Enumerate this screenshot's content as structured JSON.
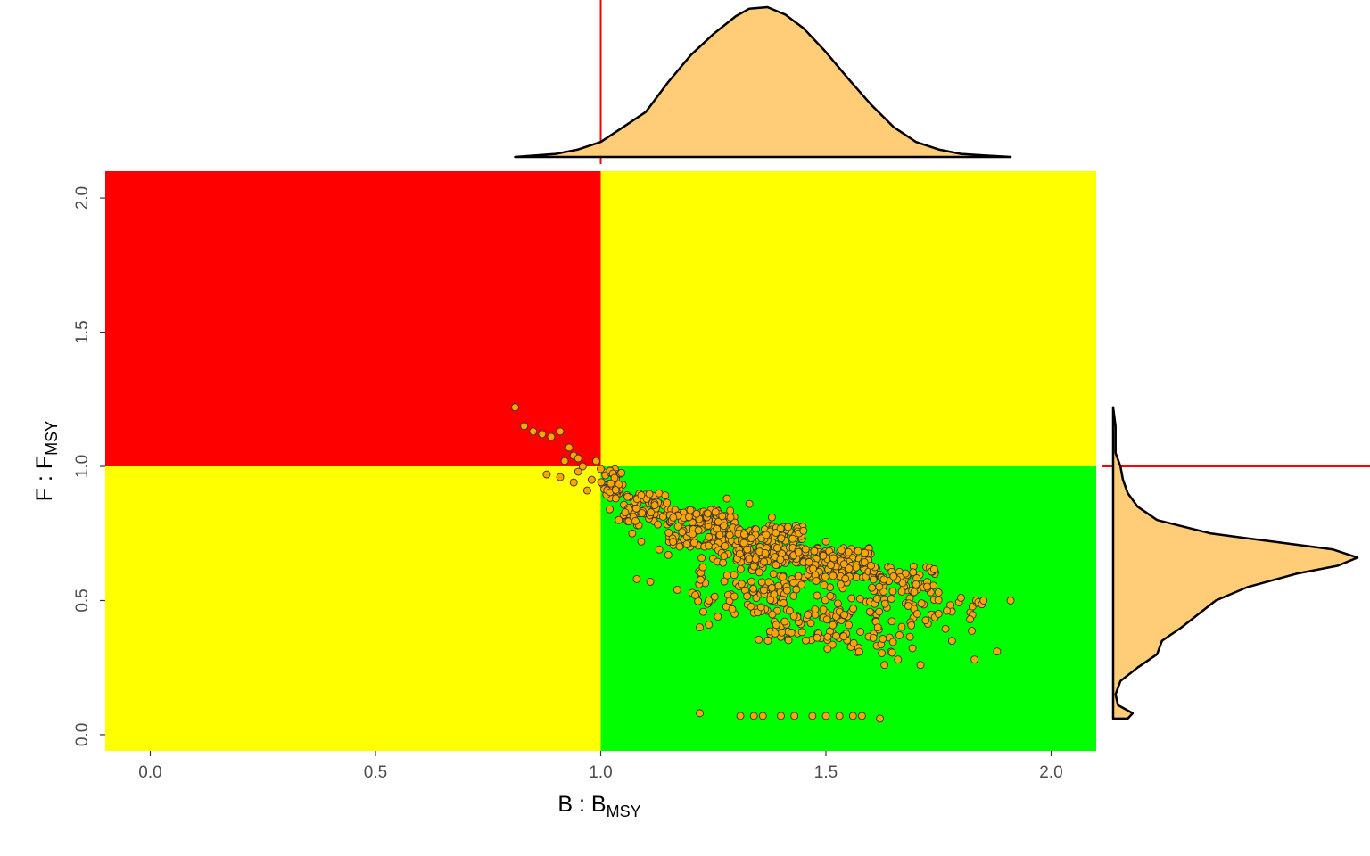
{
  "chart_data": {
    "type": "scatter",
    "title": "",
    "x_axis": {
      "label": "B : B",
      "label_subscript": "MSY",
      "range": [
        -0.1,
        2.1
      ],
      "ticks": [
        0.0,
        0.5,
        1.0,
        1.5,
        2.0
      ],
      "tick_labels": [
        "0.0",
        "0.5",
        "1.0",
        "1.5",
        "2.0"
      ]
    },
    "y_axis": {
      "label": "F : F",
      "label_subscript": "MSY",
      "range": [
        -0.06,
        2.1
      ],
      "ticks": [
        0.0,
        0.5,
        1.0,
        1.5,
        2.0
      ],
      "tick_labels": [
        "0.0",
        "0.5",
        "1.0",
        "1.5",
        "2.0"
      ]
    },
    "reference_point": {
      "x": 1.0,
      "y": 1.0
    },
    "quadrants": [
      {
        "name": "overfished-and-overfishing",
        "x": [
          -0.1,
          1.0
        ],
        "y": [
          1.0,
          2.1
        ],
        "color": "#FF0000"
      },
      {
        "name": "overfishing-only",
        "x": [
          1.0,
          2.1
        ],
        "y": [
          1.0,
          2.1
        ],
        "color": "#FFFF00"
      },
      {
        "name": "overfished-only",
        "x": [
          -0.1,
          1.0
        ],
        "y": [
          -0.06,
          1.0
        ],
        "color": "#FFFF00"
      },
      {
        "name": "sustainable",
        "x": [
          1.0,
          2.1
        ],
        "y": [
          -0.06,
          1.0
        ],
        "color": "#00FF00"
      }
    ],
    "grid": false,
    "legend": "none",
    "colors": {
      "point_fill": "#FFA500",
      "point_stroke": "#333333",
      "density_fill": "#FFCC77",
      "reference_line": "#FF0000"
    },
    "series": [
      {
        "points": [
          [
            0.81,
            1.22
          ],
          [
            0.83,
            1.15
          ],
          [
            0.85,
            1.13
          ],
          [
            0.87,
            1.12
          ],
          [
            0.89,
            1.11
          ],
          [
            0.91,
            1.13
          ],
          [
            0.93,
            1.07
          ],
          [
            0.94,
            1.04
          ],
          [
            0.92,
            1.02
          ],
          [
            0.95,
            1.03
          ],
          [
            0.96,
            1.0
          ],
          [
            0.95,
            0.98
          ],
          [
            0.88,
            0.97
          ],
          [
            0.91,
            0.96
          ],
          [
            0.94,
            0.94
          ],
          [
            0.98,
            0.95
          ],
          [
            0.99,
            1.02
          ],
          [
            1.0,
            0.99
          ],
          [
            0.97,
            0.91
          ],
          [
            1.02,
            0.84
          ],
          [
            1.04,
            0.8
          ],
          [
            1.07,
            0.75
          ],
          [
            1.09,
            0.72
          ],
          [
            1.13,
            0.69
          ],
          [
            1.15,
            0.67
          ],
          [
            1.08,
            0.58
          ],
          [
            1.11,
            0.57
          ],
          [
            1.17,
            0.54
          ],
          [
            1.21,
            0.52
          ],
          [
            1.24,
            0.5
          ],
          [
            1.26,
            0.44
          ],
          [
            1.22,
            0.4
          ],
          [
            1.24,
            0.41
          ],
          [
            1.28,
            0.88
          ],
          [
            1.33,
            0.86
          ],
          [
            1.38,
            0.81
          ],
          [
            1.45,
            0.76
          ],
          [
            1.5,
            0.72
          ],
          [
            1.55,
            0.68
          ],
          [
            1.6,
            0.63
          ],
          [
            1.65,
            0.59
          ],
          [
            1.7,
            0.56
          ],
          [
            1.75,
            0.53
          ],
          [
            1.8,
            0.51
          ],
          [
            1.85,
            0.5
          ],
          [
            1.91,
            0.5
          ],
          [
            1.82,
            0.43
          ],
          [
            1.88,
            0.31
          ],
          [
            1.83,
            0.28
          ],
          [
            1.78,
            0.35
          ],
          [
            1.71,
            0.26
          ],
          [
            1.66,
            0.28
          ],
          [
            1.63,
            0.26
          ],
          [
            1.22,
            0.08
          ],
          [
            1.31,
            0.07
          ],
          [
            1.34,
            0.07
          ],
          [
            1.36,
            0.07
          ],
          [
            1.4,
            0.07
          ],
          [
            1.43,
            0.07
          ],
          [
            1.47,
            0.07
          ],
          [
            1.5,
            0.07
          ],
          [
            1.53,
            0.07
          ],
          [
            1.56,
            0.07
          ],
          [
            1.58,
            0.07
          ],
          [
            1.62,
            0.06
          ]
        ],
        "cloud": [
          {
            "x": [
              1.0,
              1.05
            ],
            "y": [
              0.88,
              0.99
            ],
            "n": 40
          },
          {
            "x": [
              1.05,
              1.15
            ],
            "y": [
              0.78,
              0.9
            ],
            "n": 70
          },
          {
            "x": [
              1.15,
              1.3
            ],
            "y": [
              0.7,
              0.84
            ],
            "n": 150
          },
          {
            "x": [
              1.3,
              1.45
            ],
            "y": [
              0.64,
              0.78
            ],
            "n": 180
          },
          {
            "x": [
              1.45,
              1.6
            ],
            "y": [
              0.58,
              0.7
            ],
            "n": 130
          },
          {
            "x": [
              1.6,
              1.75
            ],
            "y": [
              0.53,
              0.63
            ],
            "n": 70
          },
          {
            "x": [
              1.2,
              1.4
            ],
            "y": [
              0.45,
              0.7
            ],
            "n": 90
          },
          {
            "x": [
              1.35,
              1.55
            ],
            "y": [
              0.35,
              0.6
            ],
            "n": 110
          },
          {
            "x": [
              1.5,
              1.7
            ],
            "y": [
              0.3,
              0.52
            ],
            "n": 70
          },
          {
            "x": [
              1.7,
              1.85
            ],
            "y": [
              0.38,
              0.52
            ],
            "n": 25
          }
        ]
      }
    ],
    "marginal_density_x": {
      "x": [
        0.81,
        0.9,
        0.95,
        1.0,
        1.05,
        1.1,
        1.15,
        1.2,
        1.25,
        1.3,
        1.33,
        1.37,
        1.41,
        1.45,
        1.5,
        1.55,
        1.6,
        1.65,
        1.7,
        1.75,
        1.8,
        1.85,
        1.91
      ],
      "density": [
        0.0,
        0.02,
        0.05,
        0.1,
        0.2,
        0.3,
        0.5,
        0.68,
        0.82,
        0.94,
        0.99,
        1.0,
        0.95,
        0.86,
        0.7,
        0.52,
        0.35,
        0.2,
        0.1,
        0.05,
        0.02,
        0.01,
        0.0
      ]
    },
    "marginal_density_y": {
      "y": [
        0.06,
        0.08,
        0.11,
        0.15,
        0.2,
        0.25,
        0.3,
        0.35,
        0.4,
        0.45,
        0.5,
        0.55,
        0.6,
        0.63,
        0.66,
        0.69,
        0.72,
        0.75,
        0.8,
        0.85,
        0.9,
        0.95,
        1.0,
        1.05,
        1.1,
        1.15,
        1.22
      ],
      "density": [
        0.06,
        0.08,
        0.02,
        0.01,
        0.03,
        0.1,
        0.18,
        0.2,
        0.28,
        0.35,
        0.42,
        0.55,
        0.75,
        0.92,
        1.0,
        0.9,
        0.65,
        0.4,
        0.18,
        0.1,
        0.06,
        0.04,
        0.03,
        0.01,
        0.01,
        0.01,
        0.0
      ]
    }
  }
}
